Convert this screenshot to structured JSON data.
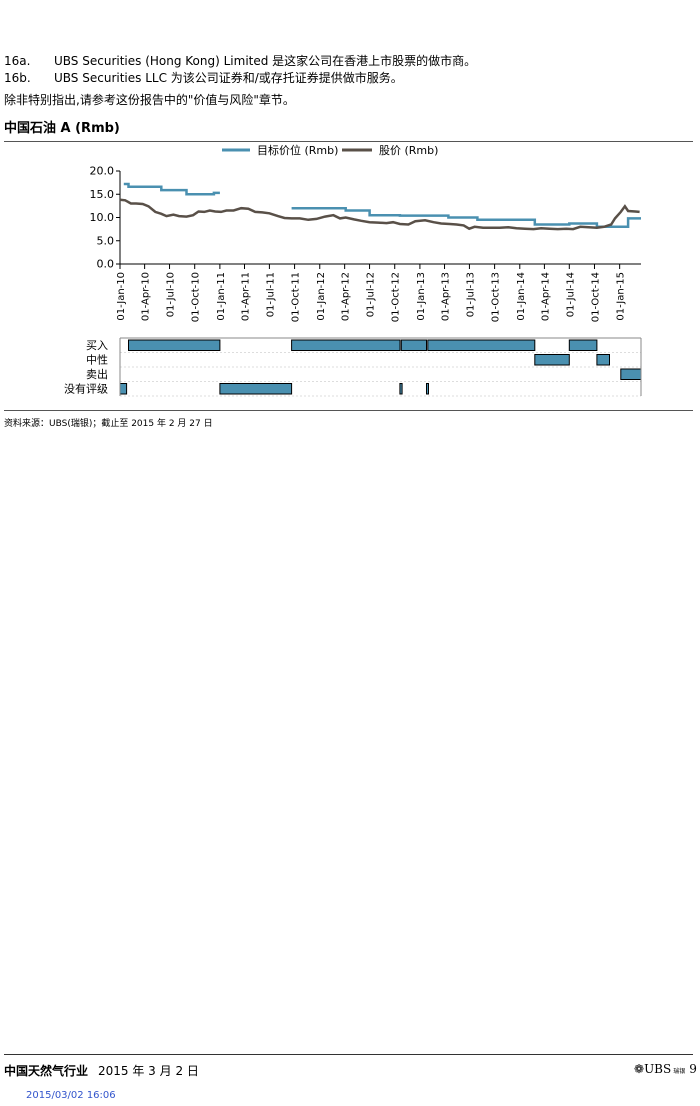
{
  "notes": [
    {
      "num": "16a.",
      "text": "UBS Securities (Hong Kong) Limited 是这家公司在香港上市股票的做市商。"
    },
    {
      "num": "16b.",
      "text": "UBS Securities LLC 为该公司证券和/或存托证券提供做市服务。"
    }
  ],
  "note_general": "除非特别指出,请参考这份报告中的\"价值与风险\"章节。",
  "chart_title": "中国石油 A (Rmb)",
  "chart_data": {
    "type": "line",
    "x_axis": {
      "type": "date",
      "range": [
        "2010-01-01",
        "2015-03-20"
      ],
      "tick_labels": [
        "01-Jan-10",
        "01-Apr-10",
        "01-Jul-10",
        "01-Oct-10",
        "01-Jan-11",
        "01-Apr-11",
        "01-Jul-11",
        "01-Oct-11",
        "01-Jan-12",
        "01-Apr-12",
        "01-Jul-12",
        "01-Oct-12",
        "01-Jan-13",
        "01-Apr-13",
        "01-Jul-13",
        "01-Oct-13",
        "01-Jan-14",
        "01-Apr-14",
        "01-Jul-14",
        "01-Oct-14",
        "01-Jan-15"
      ],
      "tick_dates": [
        "2010-01-01",
        "2010-04-01",
        "2010-07-01",
        "2010-10-01",
        "2011-01-01",
        "2011-04-01",
        "2011-07-01",
        "2011-10-01",
        "2012-01-01",
        "2012-04-01",
        "2012-07-01",
        "2012-10-01",
        "2013-01-01",
        "2013-04-01",
        "2013-07-01",
        "2013-10-01",
        "2014-01-01",
        "2014-04-01",
        "2014-07-01",
        "2014-10-01",
        "2015-01-01"
      ]
    },
    "y_axis": {
      "range": [
        0,
        20
      ],
      "tick_labels": [
        "0.0",
        "5.0",
        "10.0",
        "15.0",
        "20.0"
      ],
      "ticks": [
        0,
        5,
        10,
        15,
        20
      ]
    },
    "legend": {
      "placement": "top-center"
    },
    "series": [
      {
        "name": "目标价位 (Rmb)",
        "color": "#4a90b0",
        "style": "step",
        "segments": [
          [
            [
              "2010-01-15",
              17.2
            ],
            [
              "2010-02-01",
              17.2
            ],
            [
              "2010-02-01",
              16.6
            ],
            [
              "2010-06-01",
              16.6
            ],
            [
              "2010-06-01",
              15.9
            ],
            [
              "2010-09-01",
              15.9
            ],
            [
              "2010-09-01",
              15.0
            ],
            [
              "2010-12-10",
              15.0
            ],
            [
              "2010-12-10",
              15.3
            ],
            [
              "2011-01-01",
              15.3
            ]
          ],
          [
            [
              "2011-09-20",
              12.0
            ],
            [
              "2012-04-05",
              12.0
            ],
            [
              "2012-04-05",
              11.5
            ],
            [
              "2012-07-01",
              11.5
            ],
            [
              "2012-07-01",
              10.5
            ],
            [
              "2012-10-20",
              10.5
            ],
            [
              "2012-10-20",
              10.4
            ],
            [
              "2013-04-15",
              10.4
            ],
            [
              "2013-04-15",
              10.0
            ],
            [
              "2013-07-30",
              10.0
            ],
            [
              "2013-07-30",
              9.5
            ],
            [
              "2014-02-25",
              9.5
            ],
            [
              "2014-02-25",
              8.5
            ],
            [
              "2014-07-01",
              8.5
            ],
            [
              "2014-07-01",
              8.7
            ],
            [
              "2014-10-10",
              8.7
            ],
            [
              "2014-10-10",
              8.0
            ],
            [
              "2015-02-01",
              8.0
            ],
            [
              "2015-02-01",
              9.8
            ],
            [
              "2015-03-20",
              9.8
            ]
          ]
        ]
      },
      {
        "name": "股价 (Rmb)",
        "color": "#595048",
        "style": "line",
        "points": [
          [
            "2010-01-01",
            13.8
          ],
          [
            "2010-01-20",
            13.7
          ],
          [
            "2010-02-10",
            13.0
          ],
          [
            "2010-03-01",
            13.0
          ],
          [
            "2010-03-25",
            12.9
          ],
          [
            "2010-04-15",
            12.4
          ],
          [
            "2010-05-10",
            11.2
          ],
          [
            "2010-06-01",
            10.8
          ],
          [
            "2010-06-20",
            10.3
          ],
          [
            "2010-07-15",
            10.6
          ],
          [
            "2010-08-05",
            10.3
          ],
          [
            "2010-09-01",
            10.2
          ],
          [
            "2010-09-25",
            10.5
          ],
          [
            "2010-10-15",
            11.3
          ],
          [
            "2010-11-05",
            11.2
          ],
          [
            "2010-11-25",
            11.5
          ],
          [
            "2010-12-15",
            11.3
          ],
          [
            "2011-01-05",
            11.2
          ],
          [
            "2011-01-25",
            11.5
          ],
          [
            "2011-02-20",
            11.5
          ],
          [
            "2011-03-20",
            12.0
          ],
          [
            "2011-04-15",
            11.9
          ],
          [
            "2011-05-10",
            11.2
          ],
          [
            "2011-06-05",
            11.1
          ],
          [
            "2011-07-01",
            10.9
          ],
          [
            "2011-08-01",
            10.3
          ],
          [
            "2011-08-25",
            9.9
          ],
          [
            "2011-09-20",
            9.8
          ],
          [
            "2011-10-20",
            9.8
          ],
          [
            "2011-11-20",
            9.5
          ],
          [
            "2011-12-20",
            9.7
          ],
          [
            "2012-01-20",
            10.2
          ],
          [
            "2012-02-20",
            10.5
          ],
          [
            "2012-03-15",
            9.8
          ],
          [
            "2012-04-05",
            10.0
          ],
          [
            "2012-05-05",
            9.6
          ],
          [
            "2012-06-01",
            9.3
          ],
          [
            "2012-07-01",
            9.0
          ],
          [
            "2012-08-01",
            8.9
          ],
          [
            "2012-09-01",
            8.8
          ],
          [
            "2012-09-25",
            9.0
          ],
          [
            "2012-10-20",
            8.6
          ],
          [
            "2012-11-20",
            8.5
          ],
          [
            "2012-12-15",
            9.2
          ],
          [
            "2013-01-20",
            9.4
          ],
          [
            "2013-02-20",
            9.0
          ],
          [
            "2013-03-20",
            8.7
          ],
          [
            "2013-04-20",
            8.6
          ],
          [
            "2013-05-15",
            8.5
          ],
          [
            "2013-06-10",
            8.3
          ],
          [
            "2013-06-30",
            7.6
          ],
          [
            "2013-07-20",
            8.0
          ],
          [
            "2013-08-20",
            7.8
          ],
          [
            "2013-09-20",
            7.8
          ],
          [
            "2013-10-20",
            7.8
          ],
          [
            "2013-11-20",
            7.9
          ],
          [
            "2013-12-20",
            7.7
          ],
          [
            "2014-01-20",
            7.6
          ],
          [
            "2014-02-20",
            7.5
          ],
          [
            "2014-03-20",
            7.7
          ],
          [
            "2014-04-20",
            7.6
          ],
          [
            "2014-05-20",
            7.5
          ],
          [
            "2014-06-20",
            7.6
          ],
          [
            "2014-07-15",
            7.5
          ],
          [
            "2014-08-10",
            8.0
          ],
          [
            "2014-09-10",
            7.9
          ],
          [
            "2014-10-10",
            7.8
          ],
          [
            "2014-11-05",
            8.0
          ],
          [
            "2014-12-01",
            8.5
          ],
          [
            "2014-12-15",
            9.8
          ],
          [
            "2015-01-05",
            11.2
          ],
          [
            "2015-01-20",
            12.4
          ],
          [
            "2015-02-01",
            11.4
          ],
          [
            "2015-02-27",
            11.3
          ],
          [
            "2015-03-15",
            11.2
          ]
        ]
      }
    ],
    "rating_rows": [
      {
        "label": "买入",
        "bars": [
          [
            "2010-02-01",
            "2011-01-01"
          ],
          [
            "2011-09-20",
            "2012-10-20"
          ],
          [
            "2012-10-25",
            "2013-01-25"
          ],
          [
            "2013-01-30",
            "2014-02-25"
          ],
          [
            "2014-07-01",
            "2014-10-10"
          ]
        ]
      },
      {
        "label": "中性",
        "bars": [
          [
            "2014-02-25",
            "2014-07-01"
          ],
          [
            "2014-10-10",
            "2014-11-25"
          ]
        ]
      },
      {
        "label": "卖出",
        "bars": [
          [
            "2015-01-05",
            "2015-03-20"
          ]
        ]
      },
      {
        "label": "没有评级",
        "bars": [
          [
            "2010-01-01",
            "2010-01-25"
          ],
          [
            "2011-01-01",
            "2011-09-20"
          ],
          [
            "2012-10-20",
            "2012-10-28"
          ],
          [
            "2013-01-25",
            "2013-01-30"
          ]
        ]
      }
    ]
  },
  "source": "资料来源：UBS(瑞银)；截止至 2015 年 2 月 27 日",
  "footer": {
    "report_title": "中国天然气行业",
    "date": "2015 年 3 月 2 日",
    "logo_text": "UBS",
    "logo_sub": "瑞银",
    "page_number": "9",
    "stamp": "2015/03/02 16:06"
  }
}
